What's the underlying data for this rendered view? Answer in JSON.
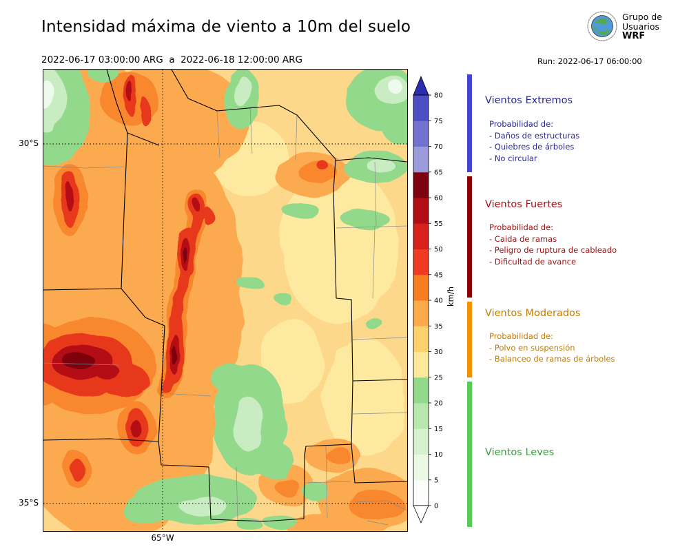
{
  "header": {
    "title": "Intensidad máxima de viento a 10m del suelo",
    "valid_period": "2022-06-17 03:00:00 ARG  a  2022-06-18 12:00:00 ARG",
    "run_label": "Run: 2022-06-17 06:00:00",
    "logo_line1": "Grupo de",
    "logo_line2": "Usuarios",
    "logo_line3": "WRF"
  },
  "axes": {
    "lat_ticks": [
      "30°S",
      "35°S"
    ],
    "lon_ticks": [
      "65°W"
    ]
  },
  "colorbar": {
    "unit": "km/h",
    "max": 80,
    "ticks": [
      0,
      5,
      10,
      15,
      20,
      25,
      30,
      35,
      40,
      45,
      50,
      55,
      60,
      65,
      70,
      75,
      80
    ],
    "segment_colors": [
      "#fbfefb",
      "#eaf8e4",
      "#d5f1cd",
      "#b7e7ae",
      "#93d98b",
      "#fee899",
      "#fdd26e",
      "#fdaa4b",
      "#f67d20",
      "#ef3b22",
      "#d7211d",
      "#b00d15",
      "#7e0310",
      "#9b9bdb",
      "#7173ce",
      "#4a4fc4"
    ],
    "over_color": "#2a2dad",
    "under_color": "#ffffff"
  },
  "legend": {
    "sections": [
      {
        "heading": "Vientos Extremos",
        "strip_color": "#4343cf",
        "text_color": "#26269b",
        "items": [
          "Probabilidad de:",
          "- Daños de estructuras",
          "- Quiebres de árboles",
          "- No circular"
        ]
      },
      {
        "heading": "Vientos Fuertes",
        "strip_color": "#8b0000",
        "text_color": "#a31212",
        "items": [
          "Probabilidad de:",
          "- Caida de ramas",
          "- Peligro de ruptura de cableado",
          "- Dificultad de avance"
        ]
      },
      {
        "heading": "Vientos Moderados",
        "strip_color": "#f29100",
        "text_color": "#c27c00",
        "items": [
          "Probabilidad de:",
          "- Polvo en suspensión",
          "- Balanceo de ramas de árboles"
        ]
      },
      {
        "heading": "Vientos Leves",
        "strip_color": "#57c957",
        "text_color": "#3d9c3d",
        "items": []
      }
    ]
  },
  "chart_data": {
    "type": "heatmap",
    "subtype": "filled-contour wind intensity map",
    "title": "Intensidad máxima de viento a 10m del suelo",
    "valid_period": "2022-06-17 03:00:00 ARG a 2022-06-18 12:00:00 ARG",
    "model_run": "Run: 2022-06-17 06:00:00",
    "source": "Grupo de Usuarios WRF",
    "unit": "km/h",
    "levels_kmh": [
      0,
      5,
      10,
      15,
      20,
      25,
      30,
      35,
      40,
      45,
      50,
      55,
      60,
      65,
      70,
      75,
      80
    ],
    "level_colors": [
      "#fbfefb",
      "#eaf8e4",
      "#d5f1cd",
      "#b7e7ae",
      "#93d98b",
      "#fee899",
      "#fdd26e",
      "#fdaa4b",
      "#f67d20",
      "#ef3b22",
      "#d7211d",
      "#b00d15",
      "#7e0310",
      "#9b9bdb",
      "#7173ce",
      "#4a4fc4"
    ],
    "over_80_color": "#2a2dad",
    "lat_gridlines": [
      "30°S",
      "35°S"
    ],
    "lon_gridlines": [
      "65°W"
    ],
    "wind_categories": [
      {
        "label": "Vientos Leves",
        "range_kmh": "0-25"
      },
      {
        "label": "Vientos Moderados",
        "range_kmh": "25-40"
      },
      {
        "label": "Vientos Fuertes",
        "range_kmh": "40-65"
      },
      {
        "label": "Vientos Extremos",
        "range_kmh": "65+"
      }
    ],
    "observed_max_kmh": 65,
    "notable_features": [
      "Franja N-S de vientos fuertes (45-65 km/h) sobre las sierras del centro-oeste",
      "Núcleos de 55-65 km/h al oeste y suroeste del dominio (~33°S-34°S)",
      "Vientos leves (10-25 km/h) en el noreste, centro y centro-sur",
      "Fondo generalizado de vientos moderados (25-40 km/h)"
    ]
  }
}
